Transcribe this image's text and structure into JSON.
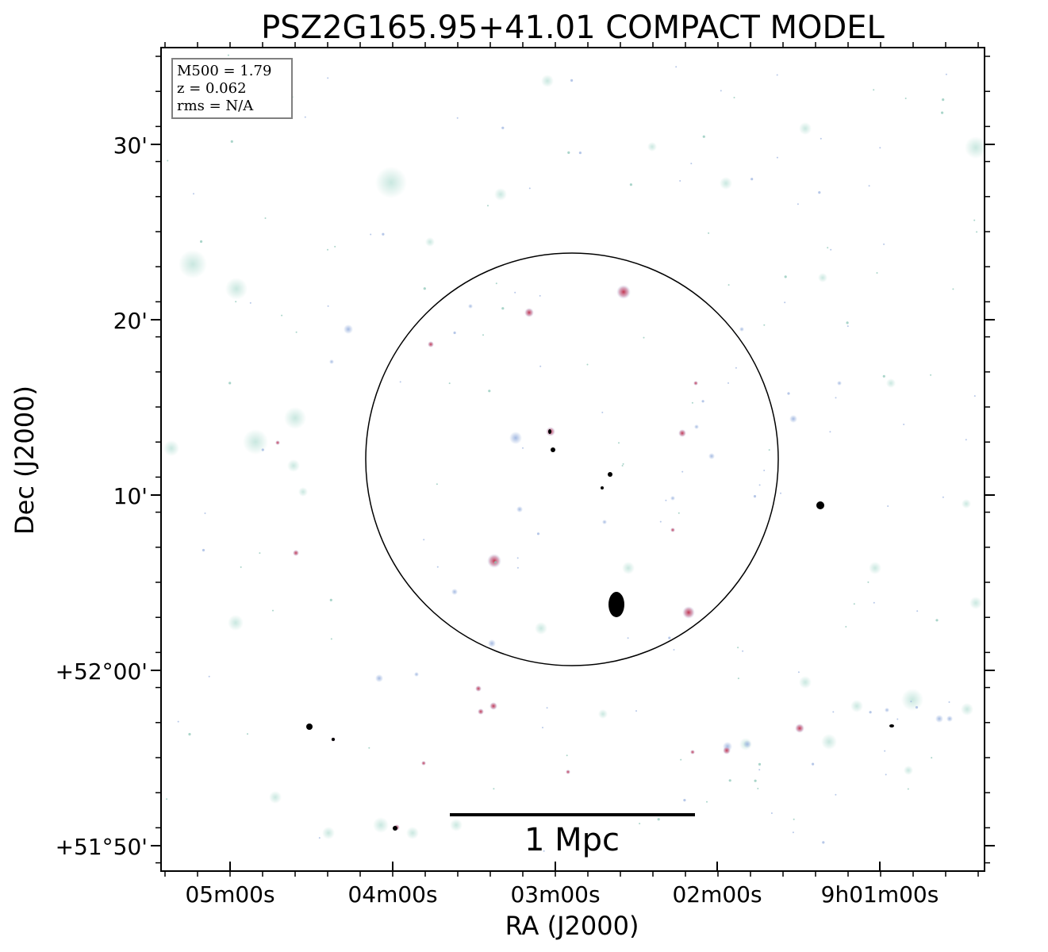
{
  "chart_data": {
    "type": "scatter",
    "title": "PSZ2G165.95+41.01 COMPACT MODEL",
    "xlabel": "RA (J2000)",
    "ylabel": "Dec (J2000)",
    "x_ticks": [
      "05m00s",
      "04m00s",
      "03m00s",
      "02m00s",
      "9h01m00s"
    ],
    "y_ticks": [
      "+51°50'",
      "+52°00'",
      "10'",
      "20'",
      "30'"
    ],
    "info_box": [
      "M500 = 1.79",
      "z = 0.062",
      "rms = N/A"
    ],
    "scale_bar_label": "1 Mpc",
    "colors": {
      "diffuse": "#bfe3da",
      "faint_blue": "#9fb6e0",
      "bright_red": "#c2334d",
      "core": "#000000",
      "circle": "#000000",
      "info_border": "#808080"
    }
  }
}
